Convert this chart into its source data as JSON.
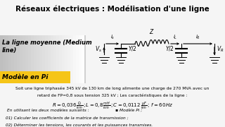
{
  "title": "Réseaux électriques : Modélisation d'une ligne",
  "title_fontsize": 7.5,
  "title_fontweight": "bold",
  "bg_color": "#f5f5f5",
  "left_panel_text1": "La ligne moyenne (Medium line)",
  "yellow_box_text": "Modèle en Pi",
  "yellow_box_color": "#f5c518",
  "body_text1": "Soit une ligne triphasée 345 kV de 130 km de long alimente une charge de 270 MVA avec un",
  "body_text2": "retard de FP=0,8 sous tension 325 kV ; Les caractéristiques de la ligne :",
  "models_text": "En utilisant les deux modèles suivants :                    ▪ Modèle Pi ;",
  "q1": "01) Calculer les coefficients de la matrice de transmission ;",
  "q2": "02) Déterminer les tensions, les courants et les puissances transmises."
}
